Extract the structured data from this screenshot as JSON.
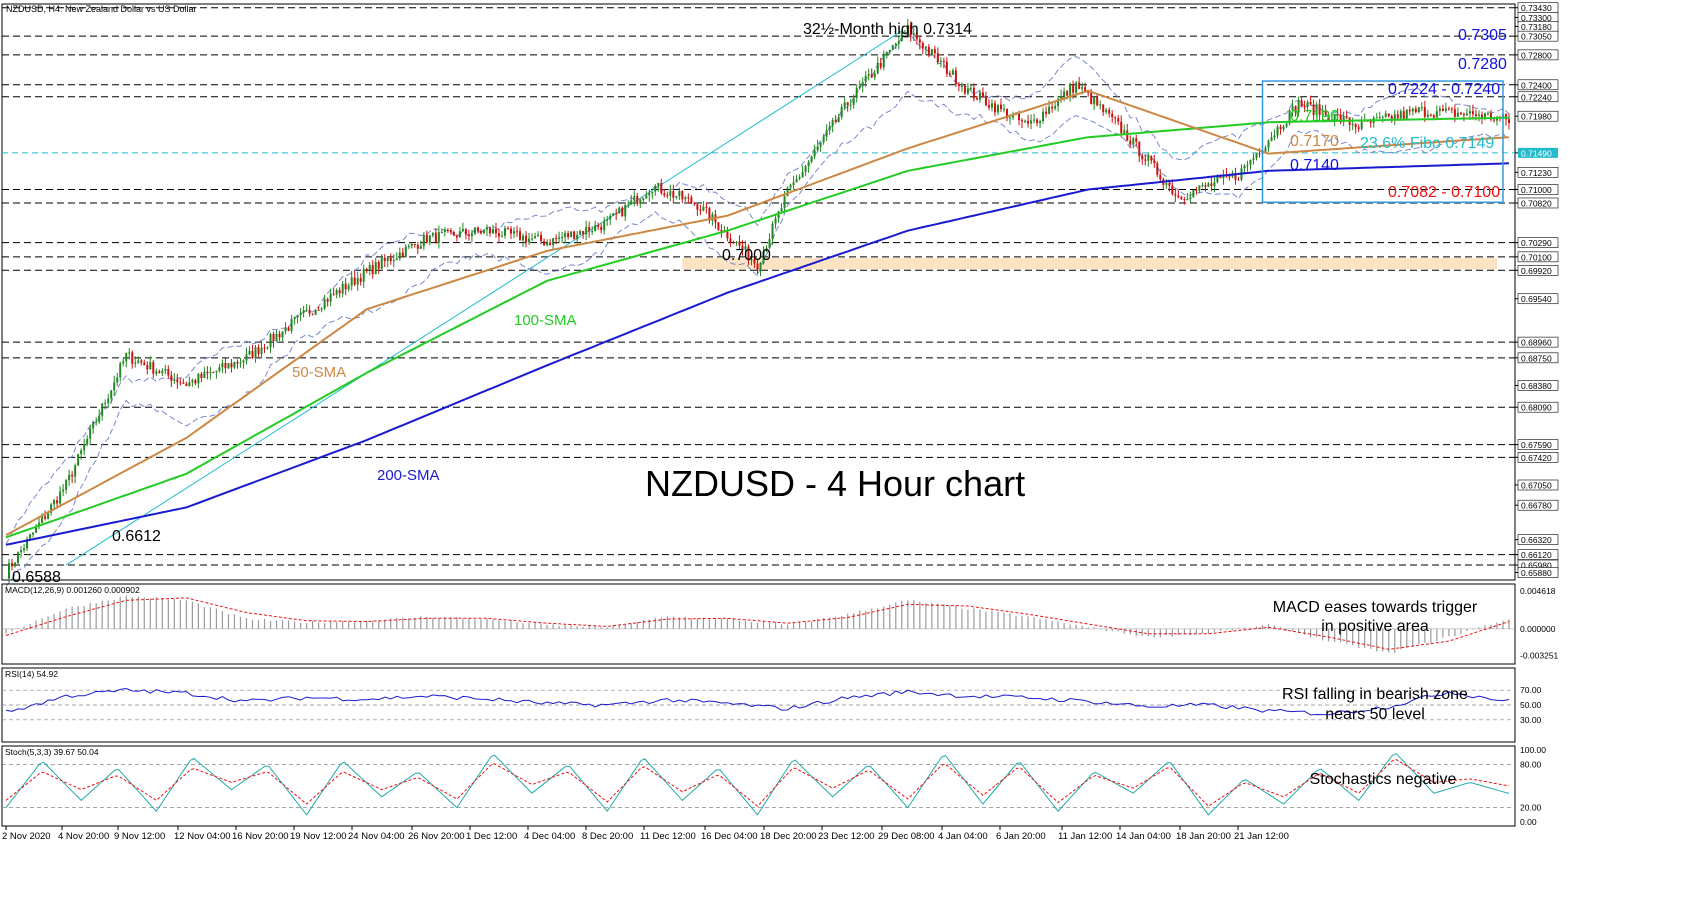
{
  "chart_data": [
    {
      "type": "candlestick",
      "title": "NZDUSD - 4 Hour chart",
      "window_label": "NZDUSD, H4:  New Zealand Dollar vs US Dollar",
      "x_ticks": [
        "2 Nov 2020",
        "4 Nov 20:00",
        "9 Nov 12:00",
        "12 Nov 04:00",
        "16 Nov 20:00",
        "19 Nov 12:00",
        "24 Nov 04:00",
        "26 Nov 20:00",
        "1 Dec 12:00",
        "4 Dec 04:00",
        "8 Dec 20:00",
        "11 Dec 12:00",
        "16 Dec 04:00",
        "18 Dec 20:00",
        "23 Dec 12:00",
        "29 Dec 08:00",
        "4 Jan 04:00",
        "6 Jan 20:00",
        "11 Jan 12:00",
        "14 Jan 04:00",
        "18 Jan 20:00",
        "21 Jan 12:00"
      ],
      "y_ticks": [
        "0.73430",
        "0.73300",
        "0.73180",
        "0.73050",
        "0.72800",
        "0.72400",
        "0.72240",
        "0.71980",
        "0.71490",
        "0.71230",
        "0.71000",
        "0.70820",
        "0.70290",
        "0.70100",
        "0.69920",
        "0.69540",
        "0.68960",
        "0.68750",
        "0.68380",
        "0.68090",
        "0.67590",
        "0.67420",
        "0.67050",
        "0.66780",
        "0.66320",
        "0.66120",
        "0.65980",
        "0.65880"
      ],
      "ylim": [
        0.6578,
        0.7348
      ],
      "highlighted_ticks": [
        "0.71490"
      ],
      "series": [
        {
          "name": "price_close_approx",
          "x_index": [
            0,
            20,
            40,
            60,
            80,
            100,
            120,
            140,
            160,
            180,
            200,
            215,
            230,
            250,
            260,
            280,
            300,
            320,
            340,
            356,
            370,
            390,
            410,
            430,
            450,
            470,
            490,
            500
          ],
          "values": [
            0.6588,
            0.6705,
            0.6878,
            0.684,
            0.6875,
            0.6935,
            0.699,
            0.7035,
            0.7045,
            0.703,
            0.7055,
            0.7105,
            0.708,
            0.7,
            0.7095,
            0.7215,
            0.7314,
            0.7232,
            0.7185,
            0.724,
            0.7185,
            0.709,
            0.712,
            0.7215,
            0.7185,
            0.7205,
            0.72,
            0.7192
          ]
        },
        {
          "name": "200-SMA",
          "x_index": [
            0,
            60,
            120,
            180,
            240,
            300,
            360,
            420,
            500
          ],
          "values": [
            0.6625,
            0.6675,
            0.6765,
            0.6865,
            0.6962,
            0.7045,
            0.71,
            0.7125,
            0.7135
          ]
        },
        {
          "name": "100-SMA",
          "x_index": [
            0,
            60,
            120,
            180,
            240,
            300,
            360,
            420,
            500
          ],
          "values": [
            0.6635,
            0.672,
            0.6855,
            0.6978,
            0.7045,
            0.7125,
            0.717,
            0.719,
            0.7196
          ]
        },
        {
          "name": "50-SMA",
          "x_index": [
            0,
            60,
            120,
            180,
            240,
            300,
            360,
            420,
            500
          ],
          "values": [
            0.6638,
            0.6768,
            0.694,
            0.7018,
            0.7065,
            0.7155,
            0.7232,
            0.7148,
            0.717
          ]
        }
      ],
      "levels": [
        {
          "label": "0.7305",
          "value": 0.7305,
          "color": "#1010e0"
        },
        {
          "label": "0.7280",
          "value": 0.728,
          "color": "#1010e0"
        },
        {
          "label": "0.7224 - 0.7240",
          "value": 0.7232,
          "color": "#1010e0"
        },
        {
          "label": "0.7196",
          "value": 0.7196,
          "color": "#22cc22"
        },
        {
          "label": "0.7170",
          "value": 0.717,
          "color": "#cc8844"
        },
        {
          "label": "23.6% Fibo 0.7149",
          "value": 0.7149,
          "color": "#22bbcc"
        },
        {
          "label": "0.7140",
          "value": 0.714,
          "color": "#1010e0"
        },
        {
          "label": "0.7082 - 0.7100",
          "value": 0.7091,
          "color": "#ee1111"
        }
      ],
      "annotations": {
        "high": "32½-Month high 0.7314",
        "support": "0.7000",
        "low1": "0.6612",
        "low2": "0.6588",
        "sma50": "50-SMA",
        "sma100": "100-SMA",
        "sma200": "200-SMA"
      },
      "colors": {
        "up": "#228822",
        "down": "#cc1111",
        "sma200": "#1a1ad0",
        "sma100": "#22cc22",
        "sma50": "#cc8844",
        "bollinger": "#7788cc",
        "fib": "#22bbcc",
        "zone": "#fbe3c4",
        "box": "#3399dd"
      }
    },
    {
      "type": "bar",
      "label": "MACD(12,26,9) 0.001260 0.000902",
      "y_ticks": [
        "0.004618",
        "0.000000",
        "-0.003251"
      ],
      "series": [
        {
          "name": "MACD",
          "x_index": [
            0,
            20,
            40,
            60,
            80,
            100,
            120,
            140,
            160,
            180,
            200,
            220,
            240,
            260,
            280,
            300,
            320,
            340,
            360,
            380,
            400,
            420,
            440,
            460,
            480,
            500
          ],
          "values": [
            -0.0005,
            0.0025,
            0.004,
            0.0035,
            0.0012,
            0.0008,
            0.001,
            0.0015,
            0.0012,
            0.0005,
            0.0002,
            0.0015,
            0.0012,
            0.0005,
            0.0018,
            0.0035,
            0.0025,
            0.0015,
            0.0002,
            -0.001,
            -0.0005,
            0.0005,
            -0.0015,
            -0.003,
            -0.001,
            0.00126
          ]
        },
        {
          "name": "Signal",
          "x_index": [
            0,
            20,
            40,
            60,
            80,
            100,
            120,
            140,
            160,
            180,
            200,
            220,
            240,
            260,
            280,
            300,
            320,
            340,
            360,
            380,
            400,
            420,
            440,
            460,
            480,
            500
          ],
          "values": [
            -0.0008,
            0.0015,
            0.0035,
            0.0038,
            0.002,
            0.001,
            0.0009,
            0.0013,
            0.0013,
            0.0007,
            0.0003,
            0.0012,
            0.0013,
            0.0007,
            0.0014,
            0.003,
            0.0028,
            0.0018,
            0.0006,
            -0.0006,
            -0.0006,
            0.0002,
            -0.001,
            -0.0025,
            -0.0015,
            0.000902
          ]
        }
      ],
      "note": "MACD eases towards trigger\nin positive area"
    },
    {
      "type": "line",
      "label": "RSI(14) 54.92",
      "y_ticks": [
        "70.00",
        "50.00",
        "30.00"
      ],
      "ylim": [
        0,
        100
      ],
      "series": [
        {
          "name": "RSI",
          "x_index": [
            0,
            20,
            40,
            60,
            80,
            100,
            120,
            140,
            160,
            180,
            200,
            220,
            240,
            260,
            280,
            300,
            320,
            340,
            360,
            380,
            400,
            420,
            440,
            460,
            480,
            500
          ],
          "values": [
            40,
            62,
            70,
            66,
            55,
            60,
            58,
            62,
            58,
            52,
            50,
            57,
            52,
            45,
            60,
            68,
            62,
            60,
            55,
            48,
            50,
            42,
            38,
            48,
            68,
            54.92
          ]
        }
      ],
      "note": "RSI falling in bearish zone\nnears 50 level"
    },
    {
      "type": "line",
      "label": "Stoch(5,3,3) 39.67 50.04",
      "y_ticks": [
        "100.00",
        "80.00",
        "20.00",
        "0.00"
      ],
      "ylim": [
        0,
        100
      ],
      "series": [
        {
          "name": "%K",
          "x_index": [
            0,
            12,
            25,
            37,
            50,
            62,
            75,
            87,
            100,
            112,
            125,
            137,
            150,
            162,
            175,
            187,
            200,
            212,
            225,
            237,
            250,
            262,
            275,
            287,
            300,
            312,
            325,
            337,
            350,
            362,
            375,
            387,
            400,
            412,
            425,
            437,
            450,
            462,
            475,
            487,
            500
          ],
          "values": [
            20,
            85,
            30,
            75,
            15,
            90,
            45,
            80,
            10,
            85,
            35,
            70,
            20,
            95,
            40,
            80,
            15,
            90,
            30,
            75,
            10,
            88,
            35,
            80,
            20,
            95,
            25,
            85,
            15,
            70,
            40,
            85,
            10,
            60,
            25,
            75,
            30,
            97,
            40,
            55,
            39.67
          ]
        },
        {
          "name": "%D",
          "x_index": [
            0,
            12,
            25,
            37,
            50,
            62,
            75,
            87,
            100,
            112,
            125,
            137,
            150,
            162,
            175,
            187,
            200,
            212,
            225,
            237,
            250,
            262,
            275,
            287,
            300,
            312,
            325,
            337,
            350,
            362,
            375,
            387,
            400,
            412,
            425,
            437,
            450,
            462,
            475,
            487,
            500
          ],
          "values": [
            30,
            70,
            45,
            65,
            30,
            75,
            55,
            70,
            25,
            70,
            45,
            62,
            32,
            82,
            52,
            70,
            28,
            78,
            42,
            66,
            22,
            76,
            47,
            72,
            32,
            82,
            37,
            77,
            27,
            65,
            47,
            77,
            22,
            55,
            35,
            68,
            40,
            88,
            55,
            60,
            50.04
          ]
        }
      ],
      "note": "Stochastics negative"
    }
  ]
}
